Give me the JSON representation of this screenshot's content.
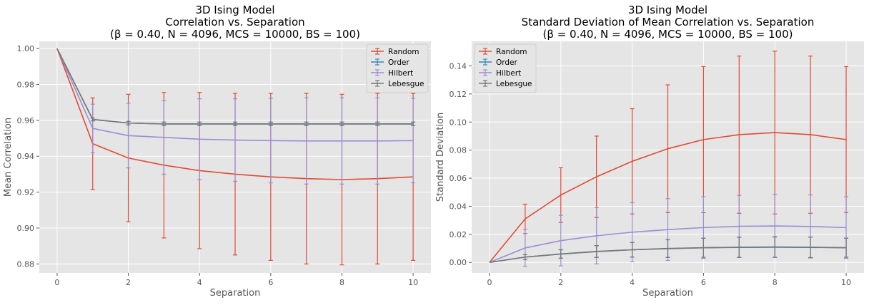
{
  "chart_data": [
    {
      "type": "line",
      "title_lines": [
        "3D Ising Model",
        "Correlation vs. Separation",
        "(β = 0.40, N = 4096, MCS = 10000, BS = 100)"
      ],
      "xlabel": "Separation",
      "ylabel": "Mean Correlation",
      "xlim": [
        -0.5,
        10.5
      ],
      "ylim": [
        0.875,
        1.004
      ],
      "xticks": [
        0,
        2,
        4,
        6,
        8,
        10
      ],
      "yticks": [
        0.88,
        0.9,
        0.92,
        0.94,
        0.96,
        0.98,
        1.0
      ],
      "ytick_labels": [
        "0.88",
        "0.90",
        "0.92",
        "0.94",
        "0.96",
        "0.98",
        "1.00"
      ],
      "grid": true,
      "legend_position": "top-right",
      "x": [
        0,
        1,
        2,
        3,
        4,
        5,
        6,
        7,
        8,
        9,
        10
      ],
      "series": [
        {
          "name": "Random",
          "color": "#E24A33",
          "values": [
            1.0,
            0.947,
            0.939,
            0.935,
            0.932,
            0.93,
            0.9285,
            0.9275,
            0.927,
            0.9275,
            0.9285
          ],
          "errors": [
            0,
            0.0255,
            0.0355,
            0.0405,
            0.0435,
            0.045,
            0.0465,
            0.0475,
            0.0475,
            0.0475,
            0.0465
          ]
        },
        {
          "name": "Order",
          "color": "#348ABD",
          "values": [
            1.0,
            0.9605,
            0.9585,
            0.958,
            0.958,
            0.958,
            0.958,
            0.958,
            0.958,
            0.958,
            0.958
          ],
          "errors": [
            0,
            0.0008,
            0.001,
            0.001,
            0.001,
            0.001,
            0.001,
            0.001,
            0.001,
            0.001,
            0.001
          ]
        },
        {
          "name": "Hilbert",
          "color": "#988ED5",
          "values": [
            1.0,
            0.9555,
            0.9515,
            0.9505,
            0.9495,
            0.949,
            0.9487,
            0.9485,
            0.9485,
            0.9485,
            0.9487
          ],
          "errors": [
            0,
            0.0135,
            0.018,
            0.0205,
            0.0225,
            0.023,
            0.0235,
            0.024,
            0.024,
            0.024,
            0.0235
          ]
        },
        {
          "name": "Lebesgue",
          "color": "#777777",
          "values": [
            1.0,
            0.9605,
            0.9585,
            0.958,
            0.958,
            0.958,
            0.958,
            0.958,
            0.958,
            0.958,
            0.958
          ],
          "errors": [
            0,
            0.0008,
            0.001,
            0.001,
            0.001,
            0.001,
            0.001,
            0.001,
            0.001,
            0.001,
            0.001
          ]
        }
      ]
    },
    {
      "type": "line",
      "title_lines": [
        "3D Ising Model",
        "Standard Deviation of  Mean Correlation vs. Separation",
        "(β = 0.40, N = 4096, MCS = 10000, BS = 100)"
      ],
      "xlabel": "Separation",
      "ylabel": "Standard Deviation",
      "xlim": [
        -0.5,
        10.5
      ],
      "ylim": [
        -0.0075,
        0.1575
      ],
      "xticks": [
        0,
        2,
        4,
        6,
        8,
        10
      ],
      "yticks": [
        0.0,
        0.02,
        0.04,
        0.06,
        0.08,
        0.1,
        0.12,
        0.14
      ],
      "ytick_labels": [
        "0.00",
        "0.02",
        "0.04",
        "0.06",
        "0.08",
        "0.10",
        "0.12",
        "0.14"
      ],
      "grid": true,
      "legend_position": "top-left",
      "x": [
        0,
        1,
        2,
        3,
        4,
        5,
        6,
        7,
        8,
        9,
        10
      ],
      "series": [
        {
          "name": "Random",
          "color": "#E24A33",
          "values": [
            0.0,
            0.031,
            0.048,
            0.061,
            0.072,
            0.081,
            0.0875,
            0.091,
            0.0925,
            0.091,
            0.0875
          ],
          "errors": [
            0,
            0.0105,
            0.0195,
            0.029,
            0.0375,
            0.0455,
            0.052,
            0.056,
            0.058,
            0.056,
            0.052
          ]
        },
        {
          "name": "Order",
          "color": "#348ABD",
          "values": [
            0.0,
            0.0038,
            0.006,
            0.0077,
            0.009,
            0.0098,
            0.0104,
            0.0107,
            0.0108,
            0.0107,
            0.0104
          ],
          "errors": [
            0,
            0.0017,
            0.003,
            0.0042,
            0.0052,
            0.0063,
            0.0068,
            0.0072,
            0.0073,
            0.0073,
            0.0068
          ]
        },
        {
          "name": "Hilbert",
          "color": "#988ED5",
          "values": [
            0.0,
            0.0103,
            0.0155,
            0.019,
            0.0215,
            0.0234,
            0.0248,
            0.0257,
            0.026,
            0.0256,
            0.0248
          ],
          "errors": [
            0,
            0.0132,
            0.018,
            0.02,
            0.021,
            0.022,
            0.022,
            0.022,
            0.0225,
            0.0225,
            0.022
          ]
        },
        {
          "name": "Lebesgue",
          "color": "#777777",
          "values": [
            0.0,
            0.0038,
            0.006,
            0.0078,
            0.009,
            0.0099,
            0.0105,
            0.0108,
            0.011,
            0.0108,
            0.0105
          ],
          "errors": [
            0,
            0.0017,
            0.003,
            0.0042,
            0.0052,
            0.0063,
            0.0068,
            0.0072,
            0.0073,
            0.0073,
            0.0068
          ]
        }
      ]
    }
  ]
}
